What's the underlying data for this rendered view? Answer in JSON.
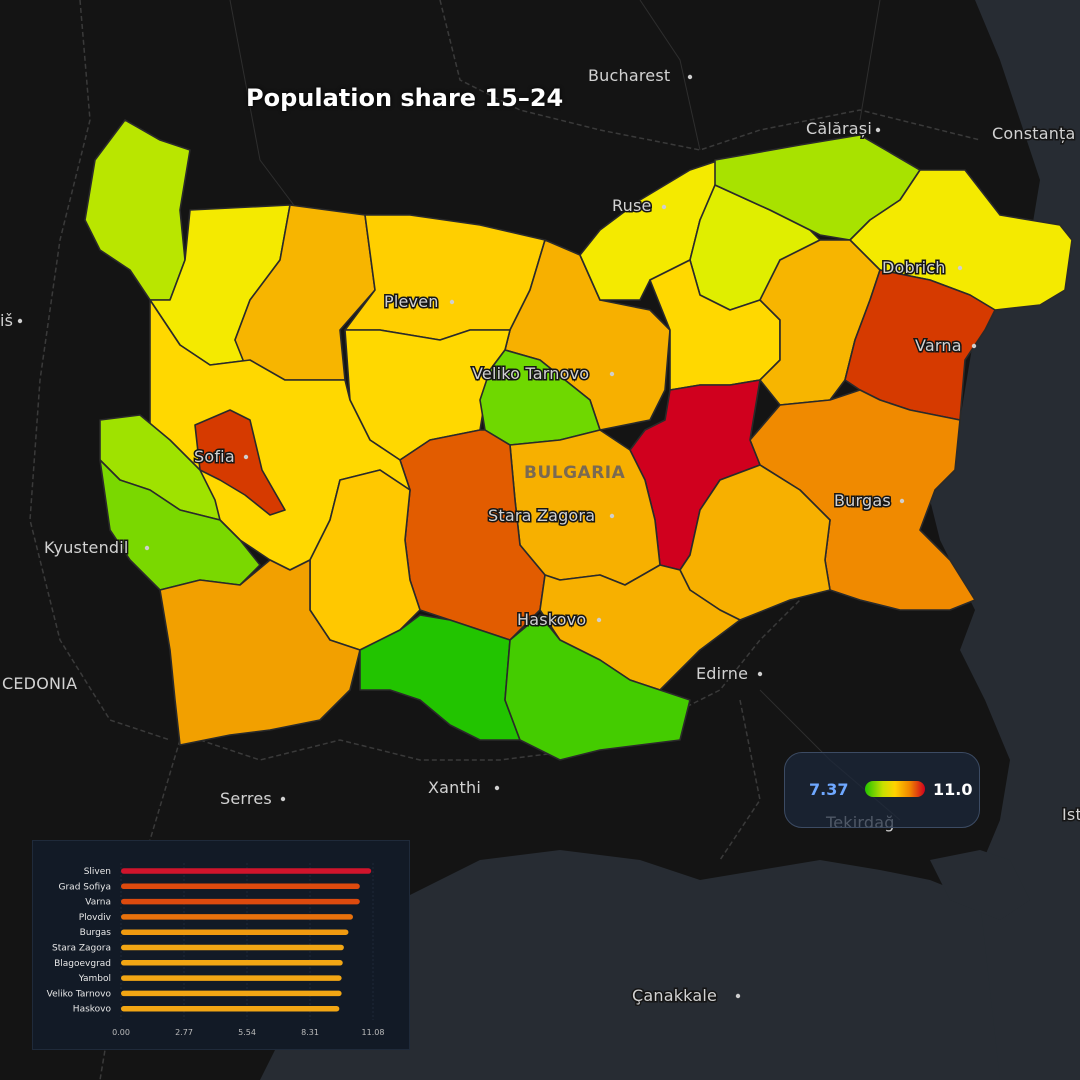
{
  "title": "Population share 15–24",
  "legend": {
    "min_label": "7.37",
    "max_label": "11.0",
    "colors": [
      "#22c400",
      "#c8e000",
      "#ffd200",
      "#f08400",
      "#d0001e"
    ]
  },
  "map_labels": {
    "bucharest": "Bucharest",
    "calarasi": "Călărași",
    "constanta": "Constanța",
    "ruse": "Ruse",
    "dobrich": "Dobrich",
    "pleven": "Pleven",
    "veliko_tarnovo": "Veliko Tarnovo",
    "varna": "Varna",
    "sofia": "Sofia",
    "bulgaria": "BULGARIA",
    "burgas": "Burgas",
    "stara_zagora": "Stara Zagora",
    "kyustendil": "Kyustendil",
    "haskovo": "Haskovo",
    "edirne": "Edirne",
    "macedonia": "CEDONIA",
    "serres": "Serres",
    "xanthi": "Xanthi",
    "tekirdag": "Tekirdağ",
    "canakkale": "Çanakkale",
    "nis": "iš",
    "ist": "Ist"
  },
  "chart_data": {
    "type": "bar",
    "orientation": "horizontal",
    "categories": [
      "Sliven",
      "Grad Sofiya",
      "Varna",
      "Plovdiv",
      "Burgas",
      "Stara Zagora",
      "Blagoevgrad",
      "Yambol",
      "Veliko Tarnovo",
      "Haskovo"
    ],
    "values": [
      11.0,
      10.5,
      10.5,
      10.2,
      10.0,
      9.8,
      9.75,
      9.7,
      9.7,
      9.6
    ],
    "colors": [
      "#d0142c",
      "#dd4a0e",
      "#dd4a0e",
      "#e8710c",
      "#f09a10",
      "#f2a614",
      "#f2a614",
      "#f2a614",
      "#f2a614",
      "#f2a614"
    ],
    "xticks": [
      "0.00",
      "2.77",
      "5.54",
      "8.31",
      "11.08"
    ],
    "xlim": [
      0,
      11.08
    ]
  }
}
